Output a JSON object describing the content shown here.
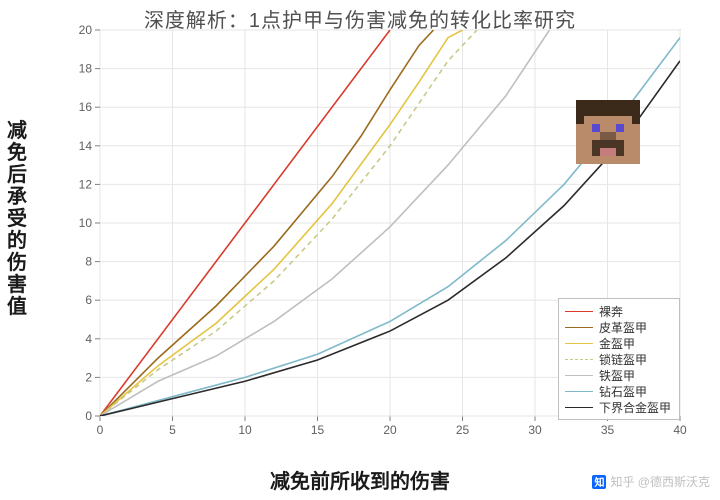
{
  "title": "深度解析：1点护甲与伤害减免的转化比率研究",
  "ylabel": "减免后承受的伤害值",
  "xlabel": "减免前所收到的伤害",
  "watermark": {
    "badge": "知",
    "text": "知乎 @德西斯沃克"
  },
  "chart": {
    "type": "line",
    "xlim": [
      0,
      40
    ],
    "ylim": [
      0,
      20
    ],
    "xtick_step": 5,
    "ytick_step": 2,
    "background_color": "#ffffff",
    "grid_color": "#e6e6e6",
    "axis_color": "#808080",
    "tick_fontsize": 12,
    "tick_color": "#606060",
    "line_width": 1.6,
    "series": [
      {
        "name": "裸奔",
        "label": "裸奔",
        "color": "#d93a2b",
        "dash": "none",
        "points": [
          [
            0,
            0
          ],
          [
            20,
            20
          ]
        ]
      },
      {
        "name": "皮革盔甲",
        "label": "皮革盔甲",
        "color": "#9c6a1e",
        "dash": "none",
        "points": [
          [
            0,
            0
          ],
          [
            4,
            3.0
          ],
          [
            8,
            5.7
          ],
          [
            12,
            8.8
          ],
          [
            16,
            12.4
          ],
          [
            18,
            14.5
          ],
          [
            20,
            16.9
          ],
          [
            22,
            19.2
          ],
          [
            23,
            20
          ]
        ]
      },
      {
        "name": "金盔甲",
        "label": "金盔甲",
        "color": "#e4c440",
        "dash": "none",
        "points": [
          [
            0,
            0
          ],
          [
            4,
            2.6
          ],
          [
            8,
            4.8
          ],
          [
            12,
            7.6
          ],
          [
            16,
            11.0
          ],
          [
            20,
            15.1
          ],
          [
            22,
            17.3
          ],
          [
            24,
            19.6
          ],
          [
            25,
            20
          ]
        ]
      },
      {
        "name": "锁链盔甲",
        "label": "锁链盔甲",
        "color": "#c9c98a",
        "dash": "5,4",
        "points": [
          [
            0,
            0
          ],
          [
            4,
            2.4
          ],
          [
            8,
            4.4
          ],
          [
            12,
            7.0
          ],
          [
            16,
            10.2
          ],
          [
            20,
            14.0
          ],
          [
            24,
            18.4
          ],
          [
            26,
            20
          ]
        ]
      },
      {
        "name": "铁盔甲",
        "label": "铁盔甲",
        "color": "#bfbfbf",
        "dash": "none",
        "points": [
          [
            0,
            0
          ],
          [
            4,
            1.8
          ],
          [
            8,
            3.1
          ],
          [
            12,
            4.9
          ],
          [
            16,
            7.1
          ],
          [
            20,
            9.8
          ],
          [
            24,
            13.0
          ],
          [
            28,
            16.6
          ],
          [
            31,
            20
          ]
        ]
      },
      {
        "name": "钻石盔甲",
        "label": "钻石盔甲",
        "color": "#7fb9c9",
        "dash": "none",
        "points": [
          [
            0,
            0
          ],
          [
            5,
            1.0
          ],
          [
            10,
            2.0
          ],
          [
            15,
            3.2
          ],
          [
            20,
            4.9
          ],
          [
            24,
            6.7
          ],
          [
            28,
            9.1
          ],
          [
            32,
            12.0
          ],
          [
            36,
            15.6
          ],
          [
            40,
            19.6
          ]
        ]
      },
      {
        "name": "下界合金盔甲",
        "label": "下界合金盔甲",
        "color": "#2b2b2b",
        "dash": "none",
        "points": [
          [
            0,
            0
          ],
          [
            5,
            0.9
          ],
          [
            10,
            1.8
          ],
          [
            15,
            2.9
          ],
          [
            20,
            4.4
          ],
          [
            24,
            6.0
          ],
          [
            28,
            8.2
          ],
          [
            32,
            10.9
          ],
          [
            36,
            14.2
          ],
          [
            40,
            18.4
          ]
        ]
      }
    ]
  },
  "avatar": {
    "grid": 8,
    "pixels": [
      "HHHHHHHH",
      "HHHHHHHH",
      "HSSSSSSH",
      "SSESSESS",
      "SSSNNSSS",
      "SSBBBBSS",
      "SSBMMBSS",
      "SSSSSSSS"
    ],
    "palette": {
      "H": "#3b2a1a",
      "S": "#b98b6b",
      "E": "#5a4ad0",
      "N": "#7a5a44",
      "B": "#4a3626",
      "M": "#c77b7b"
    }
  }
}
